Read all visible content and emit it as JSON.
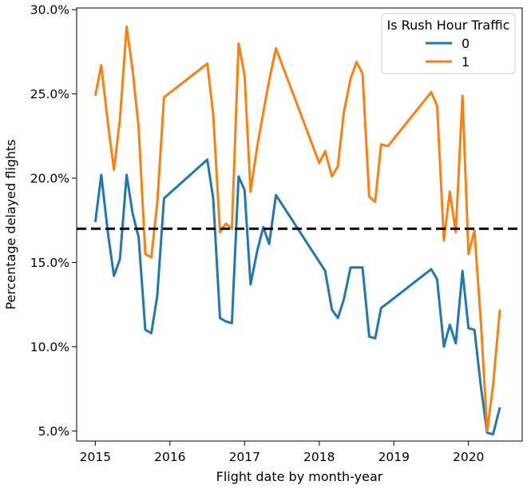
{
  "chart_data": {
    "type": "line",
    "xlabel": "Flight date by month-year",
    "ylabel": "Percentage delayed flights",
    "xlim": [
      2014.75,
      2020.72
    ],
    "ylim": [
      4.4,
      30.1
    ],
    "x_ticks": [
      2015,
      2016,
      2017,
      2018,
      2019,
      2020
    ],
    "x_tick_labels": [
      "2015",
      "2016",
      "2017",
      "2018",
      "2019",
      "2020"
    ],
    "y_ticks": [
      5,
      10,
      15,
      20,
      25,
      30
    ],
    "y_tick_labels": [
      "5.0%",
      "10.0%",
      "15.0%",
      "20.0%",
      "25.0%",
      "30.0%"
    ],
    "reference_line": {
      "y": 17.0,
      "style": "dashed",
      "color": "#000000"
    },
    "legend": {
      "title": "Is Rush Hour Traffic",
      "placement": "top-right"
    },
    "grid": false,
    "series": [
      {
        "name": "0",
        "color": "#1f77b4",
        "x": [
          2015.0,
          2015.08,
          2015.17,
          2015.25,
          2015.33,
          2015.42,
          2015.5,
          2015.58,
          2015.67,
          2015.75,
          2015.83,
          2015.92,
          2016.5,
          2016.58,
          2016.67,
          2016.75,
          2016.83,
          2016.92,
          2017.0,
          2017.08,
          2017.17,
          2017.25,
          2017.33,
          2017.42,
          2018.08,
          2018.17,
          2018.25,
          2018.33,
          2018.42,
          2018.58,
          2018.67,
          2018.75,
          2018.83,
          2018.92,
          2019.5,
          2019.58,
          2019.67,
          2019.75,
          2019.83,
          2019.92,
          2020.0,
          2020.08,
          2020.17,
          2020.25,
          2020.33,
          2020.42
        ],
        "y": [
          17.4,
          20.2,
          16.7,
          14.2,
          15.2,
          20.2,
          17.9,
          16.5,
          11.0,
          10.8,
          13.0,
          18.8,
          21.1,
          18.8,
          11.7,
          11.5,
          11.4,
          20.1,
          19.3,
          13.7,
          15.7,
          17.1,
          16.1,
          19.0,
          14.5,
          12.2,
          11.7,
          12.8,
          14.7,
          14.7,
          10.6,
          10.5,
          12.3,
          12.6,
          14.6,
          14.0,
          10.0,
          11.3,
          10.2,
          14.5,
          11.1,
          11.0,
          7.5,
          4.9,
          4.8,
          6.4
        ]
      },
      {
        "name": "1",
        "color": "#ff7f0e",
        "x": [
          2015.0,
          2015.08,
          2015.17,
          2015.25,
          2015.33,
          2015.42,
          2015.5,
          2015.58,
          2015.67,
          2015.75,
          2015.83,
          2015.92,
          2016.5,
          2016.58,
          2016.67,
          2016.75,
          2016.83,
          2016.92,
          2017.0,
          2017.08,
          2017.17,
          2017.25,
          2017.33,
          2017.42,
          2018.0,
          2018.08,
          2018.17,
          2018.25,
          2018.33,
          2018.42,
          2018.5,
          2018.58,
          2018.67,
          2018.75,
          2018.83,
          2018.92,
          2019.5,
          2019.58,
          2019.67,
          2019.75,
          2019.83,
          2019.92,
          2020.0,
          2020.08,
          2020.17,
          2020.25,
          2020.33,
          2020.42
        ],
        "y": [
          24.9,
          26.7,
          23.2,
          20.5,
          23.5,
          29.0,
          26.4,
          23.0,
          15.5,
          15.3,
          18.5,
          24.8,
          26.8,
          23.8,
          16.8,
          17.3,
          17.0,
          28.0,
          26.1,
          19.2,
          21.9,
          23.9,
          25.8,
          27.7,
          20.9,
          21.6,
          20.1,
          20.7,
          23.9,
          25.9,
          26.9,
          26.2,
          18.9,
          18.6,
          22.0,
          21.9,
          25.1,
          24.3,
          16.3,
          19.2,
          16.8,
          24.9,
          15.5,
          16.9,
          11.2,
          5.0,
          7.7,
          12.2
        ]
      }
    ]
  }
}
